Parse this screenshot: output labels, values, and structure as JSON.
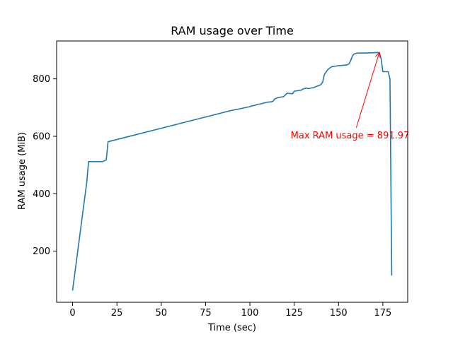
{
  "chart_data": {
    "type": "line",
    "title": "RAM usage over Time",
    "xlabel": "Time (sec)",
    "ylabel": "RAM usage (MiB)",
    "xlim": [
      -9,
      189
    ],
    "ylim": [
      22,
      932
    ],
    "xticks": [
      0,
      25,
      50,
      75,
      100,
      125,
      150,
      175
    ],
    "yticks": [
      200,
      400,
      600,
      800
    ],
    "grid": false,
    "line_color": "#1f77b4",
    "annotation_color": "#ff0000",
    "series": [
      {
        "x": [
          0,
          8,
          9,
          17,
          18,
          19,
          20,
          87,
          88,
          93,
          96,
          99,
          100,
          101,
          103,
          104,
          107,
          108,
          110,
          112,
          113,
          114,
          116,
          119,
          120,
          121,
          124,
          125,
          126,
          129,
          130,
          132,
          133,
          136,
          139,
          140,
          141,
          142,
          144,
          146,
          149,
          150,
          151,
          152,
          154,
          155,
          156,
          157,
          158,
          159,
          160,
          161,
          162,
          165,
          170,
          173,
          174,
          175,
          176,
          177,
          178,
          179,
          180
        ],
        "y": [
          63,
          440,
          512,
          512,
          515,
          518,
          581,
          686,
          688,
          694,
          698,
          702,
          703,
          706,
          708,
          711,
          714,
          716,
          719,
          720,
          722,
          730,
          735,
          738,
          744,
          750,
          748,
          757,
          758,
          761,
          765,
          768,
          766,
          770,
          777,
          780,
          788,
          815,
          833,
          842,
          845,
          846,
          846,
          847,
          848,
          849,
          853,
          866,
          882,
          887,
          889,
          890,
          890,
          890,
          891,
          892,
          870,
          825,
          825,
          825,
          825,
          800,
          115
        ]
      }
    ],
    "annotation": {
      "text": "Max RAM usage = 891.97",
      "point": [
        173,
        891.97
      ],
      "text_pos": [
        123,
        592
      ]
    }
  }
}
